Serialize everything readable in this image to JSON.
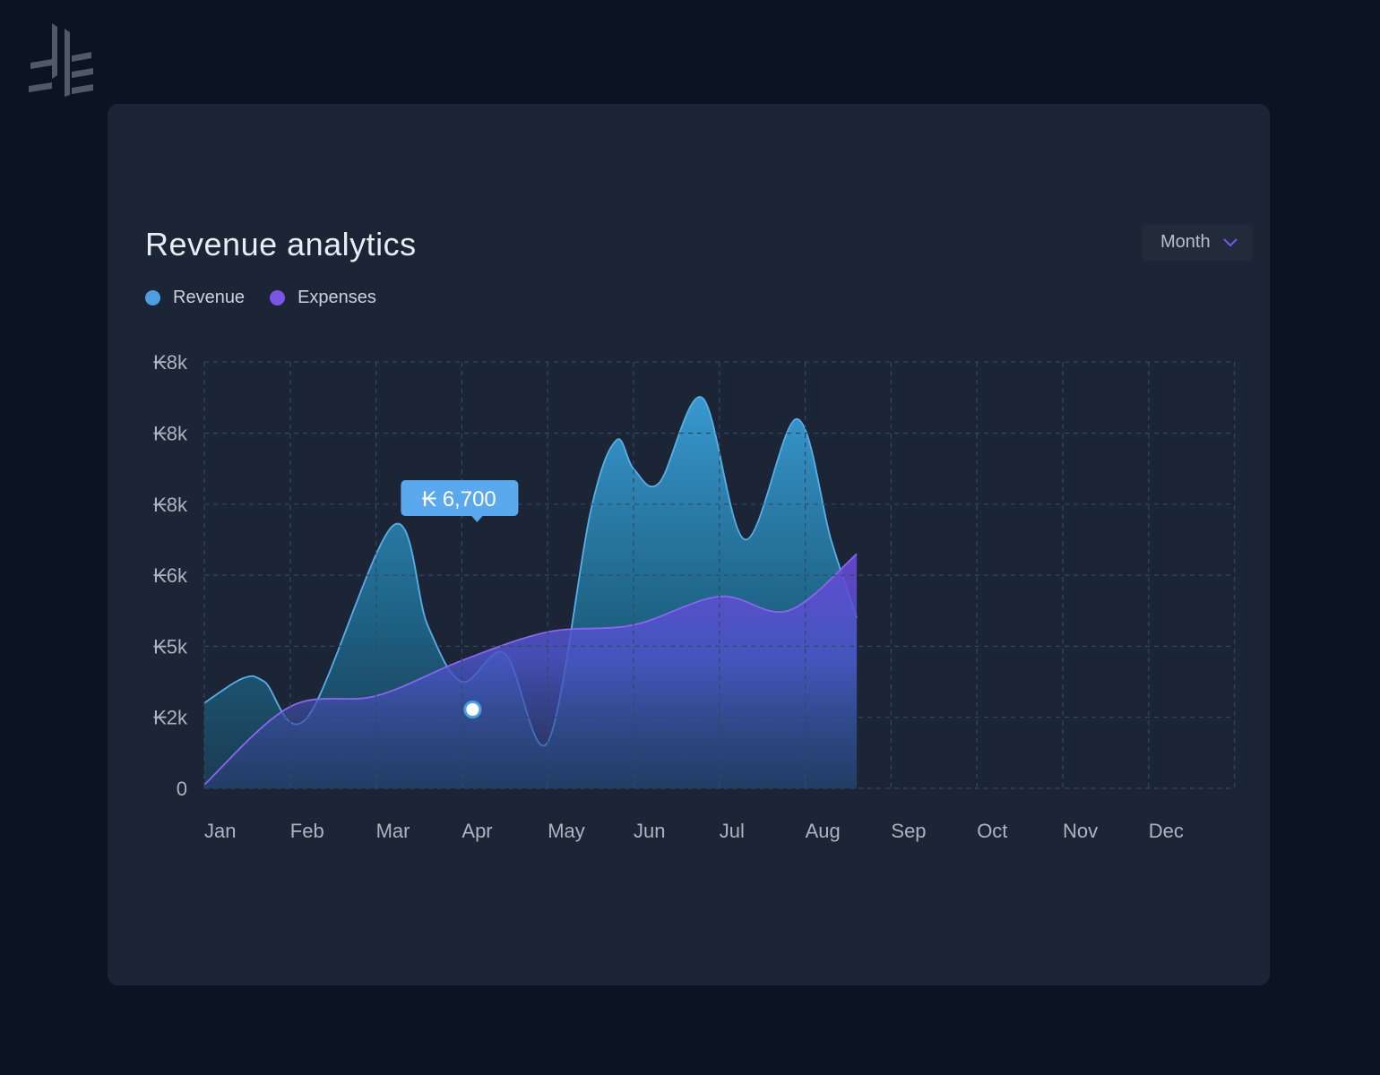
{
  "card": {
    "title": "Revenue analytics",
    "period_select": {
      "value": "Month",
      "icon": "chevron-down-icon"
    }
  },
  "colors": {
    "background": "#0b1422",
    "card": "#1b2535",
    "revenue": "#4f9ee0",
    "expenses": "#7b55e6",
    "tooltip": "#5aa8ee",
    "grid": "#2e4a66",
    "logo": "#6b7480"
  },
  "logo": {
    "icon": "brand-logo-icon"
  },
  "chart_data": {
    "type": "area",
    "title": "Revenue analytics",
    "xlabel": "",
    "ylabel": "",
    "x": [
      "Jan",
      "Feb",
      "Mar",
      "Apr",
      "May",
      "Jun",
      "Jul",
      "Aug",
      "Sep",
      "Oct",
      "Nov",
      "Dec"
    ],
    "y_ticks": [
      "0",
      "₭2k",
      "₭5k",
      "₭6k",
      "₭8k",
      "₭8k",
      "₭8k"
    ],
    "series": [
      {
        "name": "Revenue",
        "color": "#4f9ee0",
        "points": [
          [
            0,
            1.2
          ],
          [
            0.45,
            1.55
          ],
          [
            0.7,
            1.5
          ],
          [
            1.2,
            1.0
          ],
          [
            2.2,
            3.7
          ],
          [
            2.6,
            2.3
          ],
          [
            3.0,
            1.5
          ],
          [
            3.5,
            1.9
          ],
          [
            4.0,
            0.65
          ],
          [
            4.5,
            3.9
          ],
          [
            4.8,
            4.9
          ],
          [
            5.0,
            4.5
          ],
          [
            5.3,
            4.3
          ],
          [
            5.8,
            5.5
          ],
          [
            6.3,
            3.5
          ],
          [
            6.9,
            5.2
          ],
          [
            7.3,
            3.5
          ],
          [
            7.6,
            2.4
          ]
        ]
      },
      {
        "name": "Expenses",
        "color": "#7b55e6",
        "points": [
          [
            0,
            0.05
          ],
          [
            1.0,
            1.15
          ],
          [
            2.0,
            1.3
          ],
          [
            3.0,
            1.8
          ],
          [
            4.0,
            2.2
          ],
          [
            5.0,
            2.3
          ],
          [
            6.0,
            2.7
          ],
          [
            6.8,
            2.5
          ],
          [
            7.6,
            3.3
          ]
        ]
      }
    ],
    "tooltip": {
      "label": "₭ 6,700",
      "x_index": 3
    },
    "grid": true,
    "legend_position": "top-left"
  }
}
